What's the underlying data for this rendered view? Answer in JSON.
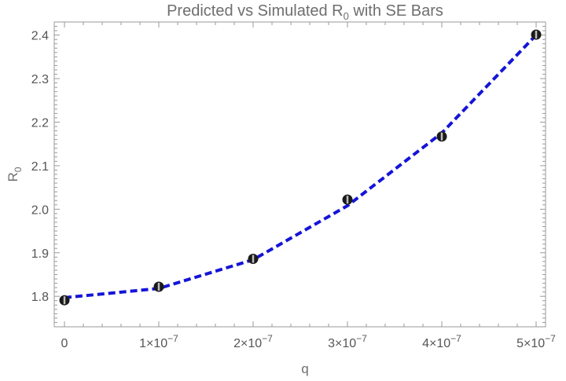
{
  "chart_data": {
    "type": "scatter",
    "title": "Predicted vs Simulated R",
    "title_subscript": "0",
    "title_suffix": " with SE Bars",
    "xlabel": "q",
    "ylabel": "R",
    "ylabel_subscript": "0",
    "xlim": [
      0,
      5e-07
    ],
    "ylim": [
      1.73,
      2.43
    ],
    "x_ticks": [
      {
        "value": 0,
        "mantissa": "0",
        "exponent": ""
      },
      {
        "value": 1e-07,
        "mantissa": "1×10",
        "exponent": "−7"
      },
      {
        "value": 2e-07,
        "mantissa": "2×10",
        "exponent": "−7"
      },
      {
        "value": 3e-07,
        "mantissa": "3×10",
        "exponent": "−7"
      },
      {
        "value": 4e-07,
        "mantissa": "4×10",
        "exponent": "−7"
      },
      {
        "value": 5e-07,
        "mantissa": "5×10",
        "exponent": "−7"
      }
    ],
    "y_ticks": [
      "1.8",
      "1.9",
      "2.0",
      "2.1",
      "2.2",
      "2.3",
      "2.4"
    ],
    "series": [
      {
        "kind": "points",
        "x": [
          0,
          1e-07,
          2e-07,
          3e-07,
          4e-07,
          5e-07
        ],
        "y": [
          1.791,
          1.822,
          1.886,
          2.022,
          2.167,
          2.401
        ]
      },
      {
        "kind": "dashed-line",
        "x": [
          0,
          1e-07,
          2e-07,
          3e-07,
          4e-07,
          5e-07
        ],
        "y": [
          1.797,
          1.818,
          1.884,
          2.008,
          2.175,
          2.4
        ]
      }
    ],
    "grid": false,
    "colors": {
      "points": "#1a1a1a",
      "line": "#1414d8",
      "frame": "#9a9a9a",
      "text": "#6e6e6e"
    }
  }
}
